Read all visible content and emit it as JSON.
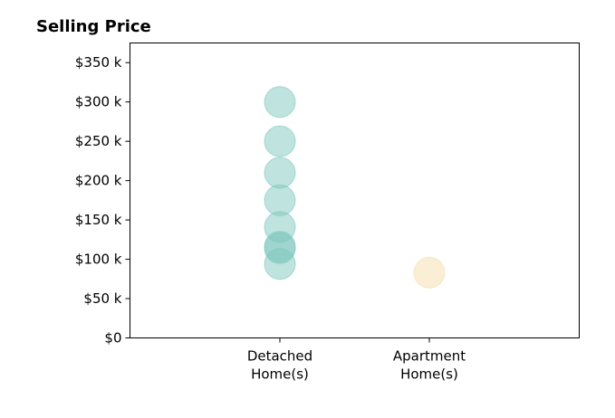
{
  "chart_data": {
    "type": "scatter",
    "title": "Selling Price",
    "xlabel": "",
    "ylabel": "",
    "categories": [
      [
        "Detached",
        "Home(s)"
      ],
      [
        "Apartment",
        "Home(s)"
      ]
    ],
    "ylim": [
      0,
      375000
    ],
    "y_ticks": [
      0,
      50000,
      100000,
      150000,
      200000,
      250000,
      300000,
      350000
    ],
    "y_tick_labels": [
      "$0",
      "$50 k",
      "$100 k",
      "$150 k",
      "$200 k",
      "$250 k",
      "$300 k",
      "$350 k"
    ],
    "grid": false,
    "legend": "none",
    "series": [
      {
        "category_index": 0,
        "color": "#7fc7bd",
        "values": [
          300000,
          250000,
          210000,
          175000,
          141000,
          116000,
          114000,
          94000
        ]
      },
      {
        "category_index": 1,
        "color": "#f5deaa",
        "values": [
          83000
        ]
      }
    ]
  }
}
